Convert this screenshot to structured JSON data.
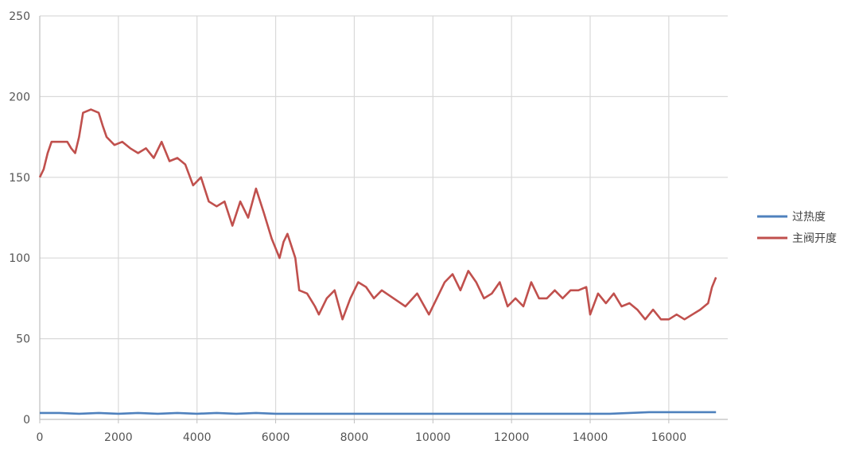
{
  "chart_data": {
    "type": "line",
    "title": "",
    "xlabel": "",
    "ylabel": "",
    "xlim": [
      0,
      17500
    ],
    "ylim": [
      0,
      250
    ],
    "x_ticks": [
      0,
      2000,
      4000,
      6000,
      8000,
      10000,
      12000,
      14000,
      16000
    ],
    "y_ticks": [
      0,
      50,
      100,
      150,
      200,
      250
    ],
    "grid": true,
    "legend_position": "right",
    "series": [
      {
        "name": "过热度",
        "color": "#4F81BD",
        "x": [
          0,
          500,
          1000,
          1500,
          2000,
          2500,
          3000,
          3500,
          4000,
          4500,
          5000,
          5500,
          6000,
          6500,
          7000,
          7500,
          8000,
          8500,
          9000,
          9500,
          10000,
          10500,
          11000,
          11500,
          12000,
          12500,
          13000,
          13500,
          14000,
          14500,
          15000,
          15500,
          16000,
          16500,
          17000,
          17200
        ],
        "y": [
          4,
          4,
          3.5,
          4,
          3.5,
          4,
          3.5,
          4,
          3.5,
          4,
          3.5,
          4,
          3.5,
          3.5,
          3.5,
          3.5,
          3.5,
          3.5,
          3.5,
          3.5,
          3.5,
          3.5,
          3.5,
          3.5,
          3.5,
          3.5,
          3.5,
          3.5,
          3.5,
          3.5,
          4,
          4.5,
          4.5,
          4.5,
          4.5,
          4.5
        ]
      },
      {
        "name": "主阀开度",
        "color": "#C0504D",
        "x": [
          0,
          100,
          200,
          300,
          500,
          700,
          800,
          900,
          1000,
          1100,
          1300,
          1500,
          1600,
          1700,
          1900,
          2100,
          2300,
          2500,
          2700,
          2900,
          3100,
          3300,
          3500,
          3700,
          3900,
          4100,
          4300,
          4500,
          4700,
          4900,
          5100,
          5300,
          5500,
          5700,
          5900,
          6100,
          6200,
          6300,
          6500,
          6600,
          6800,
          7000,
          7100,
          7300,
          7500,
          7700,
          7900,
          8100,
          8300,
          8500,
          8700,
          9000,
          9300,
          9600,
          9900,
          10100,
          10300,
          10500,
          10700,
          10900,
          11100,
          11300,
          11500,
          11700,
          11900,
          12100,
          12300,
          12500,
          12700,
          12900,
          13100,
          13300,
          13500,
          13700,
          13900,
          14000,
          14200,
          14400,
          14600,
          14800,
          15000,
          15200,
          15400,
          15600,
          15800,
          16000,
          16200,
          16400,
          16600,
          16800,
          17000,
          17100,
          17200
        ],
        "y": [
          150,
          155,
          165,
          172,
          172,
          172,
          168,
          165,
          175,
          190,
          192,
          190,
          182,
          175,
          170,
          172,
          168,
          165,
          168,
          162,
          172,
          160,
          162,
          158,
          145,
          150,
          135,
          132,
          135,
          120,
          135,
          125,
          143,
          128,
          112,
          100,
          110,
          115,
          100,
          80,
          78,
          70,
          65,
          75,
          80,
          62,
          75,
          85,
          82,
          75,
          80,
          75,
          70,
          78,
          65,
          75,
          85,
          90,
          80,
          92,
          85,
          75,
          78,
          85,
          70,
          75,
          70,
          85,
          75,
          75,
          80,
          75,
          80,
          80,
          82,
          65,
          78,
          72,
          78,
          70,
          72,
          68,
          62,
          68,
          62,
          62,
          65,
          62,
          65,
          68,
          72,
          82,
          88
        ]
      }
    ]
  }
}
